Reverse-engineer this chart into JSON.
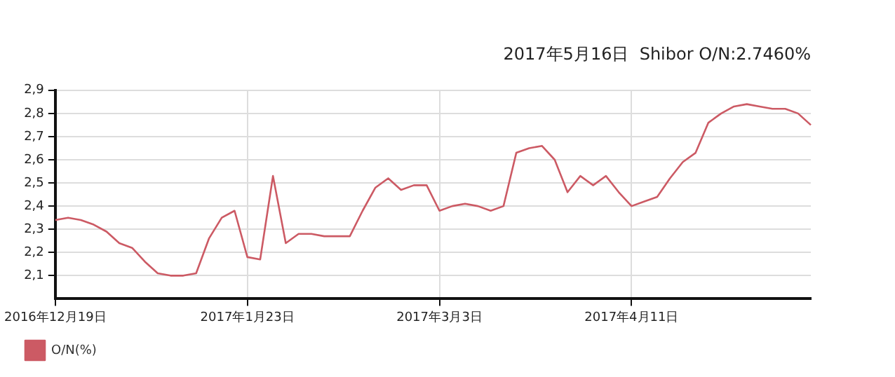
{
  "chart_data": {
    "type": "line",
    "title": "2017年5月16日  Shibor O/N:2.7460%",
    "categories": [
      "2016年12月19日",
      null,
      null,
      null,
      null,
      null,
      null,
      null,
      null,
      null,
      null,
      null,
      null,
      null,
      null,
      "2017年1月23日",
      null,
      null,
      null,
      null,
      null,
      null,
      null,
      null,
      null,
      null,
      null,
      null,
      null,
      null,
      "2017年3月3日",
      null,
      null,
      null,
      null,
      null,
      null,
      null,
      null,
      null,
      null,
      null,
      null,
      null,
      null,
      "2017年4月11日",
      null,
      null,
      null,
      null,
      null,
      null,
      null,
      null,
      null,
      null,
      null,
      null,
      null,
      null
    ],
    "series": [
      {
        "name": "O/N(%)",
        "color": "#cc5a64",
        "values": [
          2.34,
          2.35,
          2.34,
          2.32,
          2.29,
          2.24,
          2.22,
          2.16,
          2.11,
          2.1,
          2.1,
          2.11,
          2.26,
          2.35,
          2.38,
          2.18,
          2.17,
          2.53,
          2.24,
          2.28,
          2.28,
          2.27,
          2.27,
          2.27,
          2.38,
          2.48,
          2.52,
          2.47,
          2.49,
          2.49,
          2.38,
          2.4,
          2.41,
          2.4,
          2.38,
          2.4,
          2.63,
          2.65,
          2.66,
          2.6,
          2.46,
          2.53,
          2.49,
          2.53,
          2.46,
          2.4,
          2.42,
          2.44,
          2.52,
          2.59,
          2.63,
          2.76,
          2.8,
          2.83,
          2.84,
          2.83,
          2.82,
          2.82,
          2.8,
          2.75
        ]
      }
    ],
    "ylim": [
      2.0,
      2.9
    ],
    "yticks": [
      {
        "value": 2.1,
        "label": "2,1"
      },
      {
        "value": 2.2,
        "label": "2,2"
      },
      {
        "value": 2.3,
        "label": "2,3"
      },
      {
        "value": 2.4,
        "label": "2,4"
      },
      {
        "value": 2.5,
        "label": "2,5"
      },
      {
        "value": 2.6,
        "label": "2,6"
      },
      {
        "value": 2.7,
        "label": "2,7"
      },
      {
        "value": 2.8,
        "label": "2,8"
      },
      {
        "value": 2.9,
        "label": "2,9"
      }
    ],
    "grid": true,
    "legend": "bottom left",
    "marker": "none",
    "line_style": "solid"
  }
}
